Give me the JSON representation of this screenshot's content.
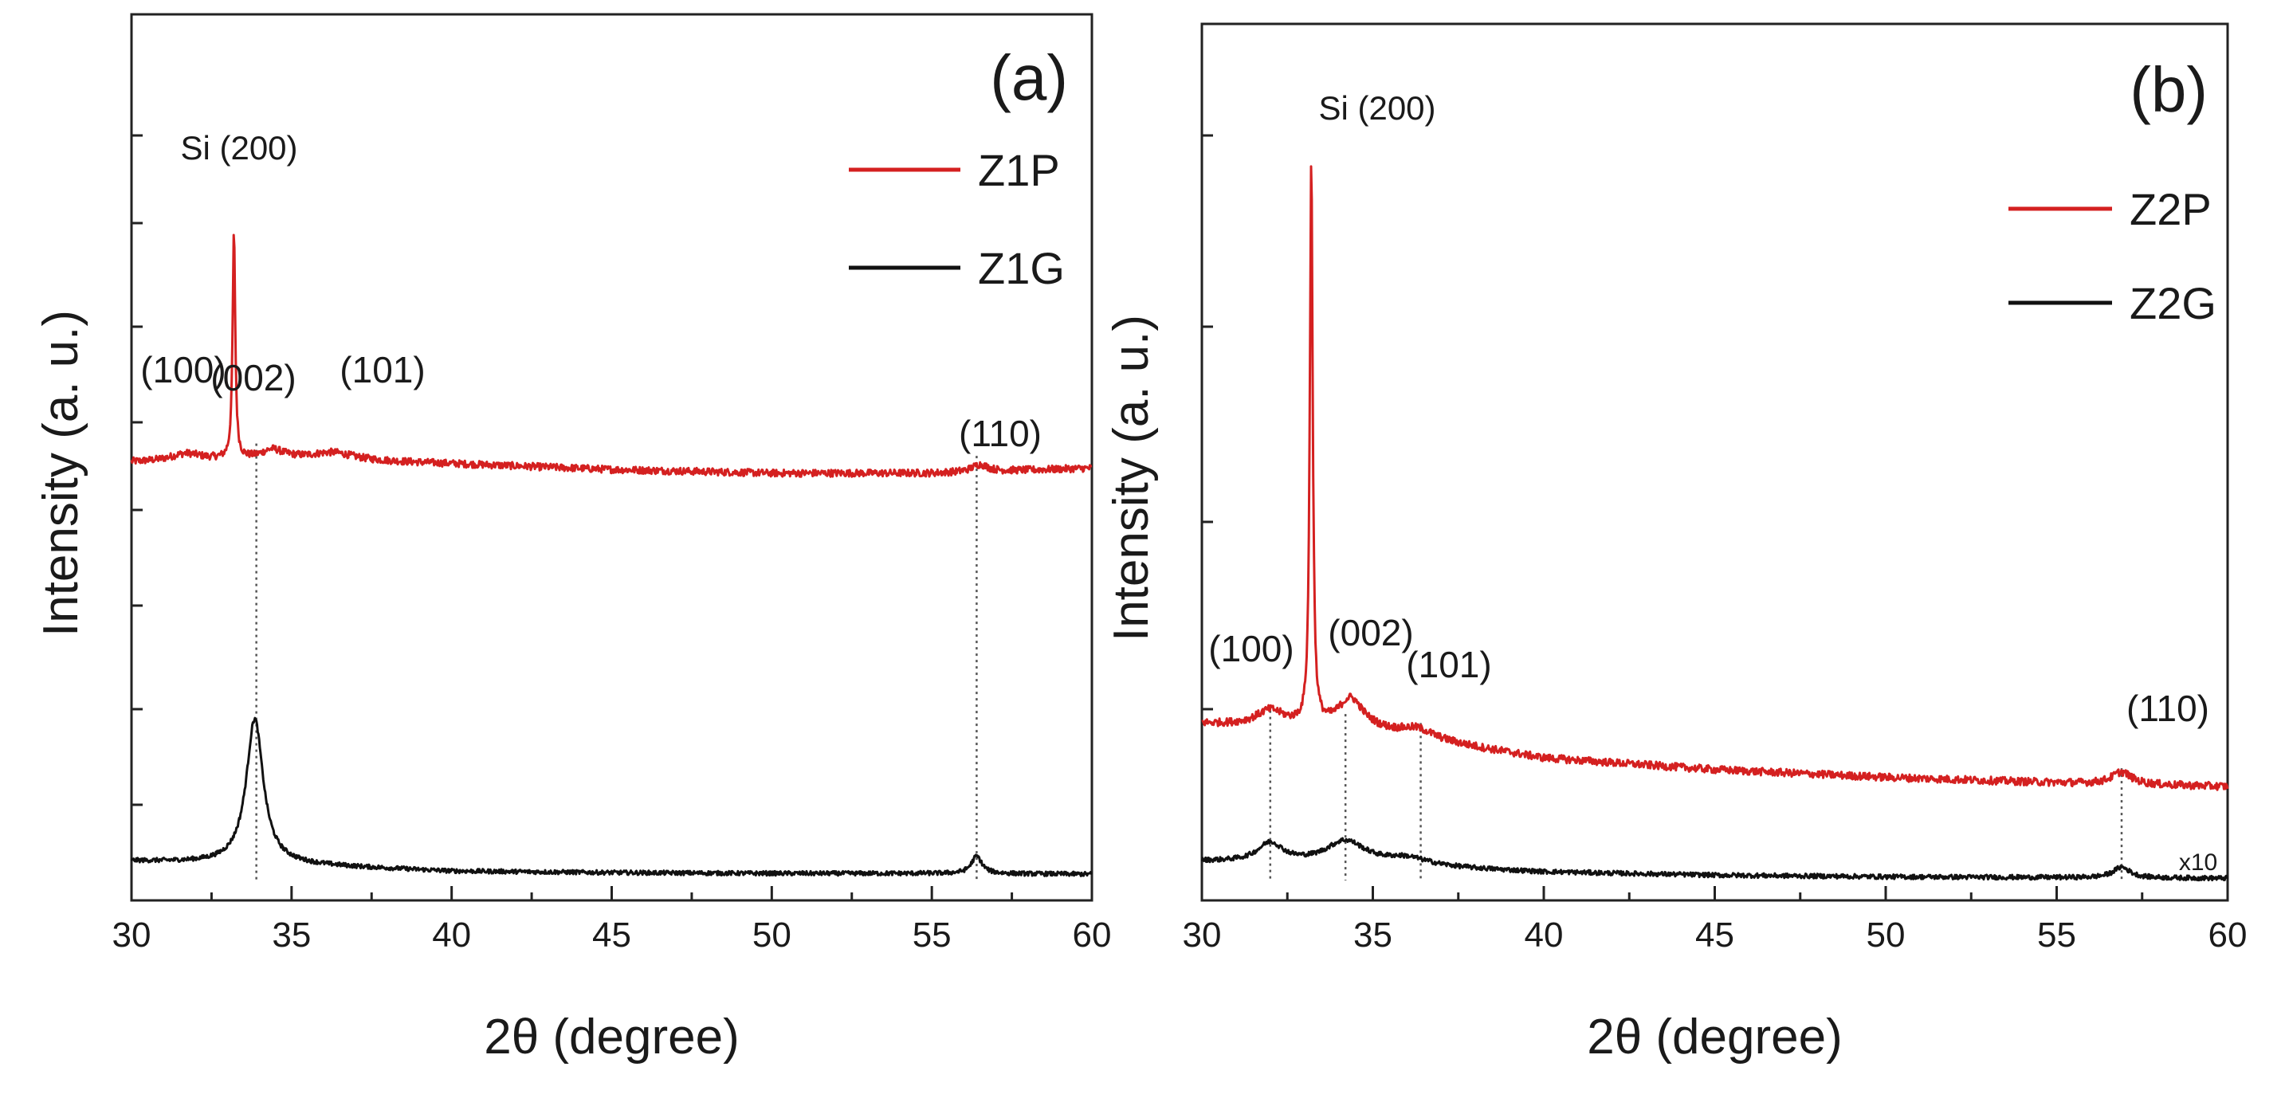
{
  "chart_data": [
    {
      "type": "line",
      "panel_label": "(a)",
      "xlabel": "2θ (degree)",
      "ylabel": "Intensity (a. u.)",
      "xlim": [
        30,
        60
      ],
      "x_ticks": [
        "30",
        "35",
        "40",
        "45",
        "50",
        "55",
        "60"
      ],
      "y_tick_labels": "none",
      "grid": false,
      "legend_position": "top-right",
      "series": [
        {
          "name": "Z1P",
          "color": "#d42020",
          "baseline": [
            [
              30,
              0.58
            ],
            [
              35,
              0.585
            ],
            [
              40,
              0.578
            ],
            [
              45,
              0.57
            ],
            [
              50,
              0.565
            ],
            [
              55,
              0.565
            ],
            [
              60,
              0.572
            ]
          ],
          "peaks": [
            {
              "x": 31.7,
              "height": 0.01,
              "width": 0.6
            },
            {
              "x": 33.2,
              "height": 0.31,
              "width": 0.05
            },
            {
              "x": 34.4,
              "height": 0.012,
              "width": 0.4
            },
            {
              "x": 36.3,
              "height": 0.01,
              "width": 0.8
            },
            {
              "x": 56.5,
              "height": 0.01,
              "width": 0.3
            }
          ],
          "noise": 0.005
        },
        {
          "name": "Z1G",
          "color": "#111111",
          "baseline": [
            [
              30,
              0.03
            ],
            [
              35,
              0.025
            ],
            [
              40,
              0.016
            ],
            [
              45,
              0.014
            ],
            [
              50,
              0.013
            ],
            [
              55,
              0.013
            ],
            [
              60,
              0.012
            ]
          ],
          "peaks": [
            {
              "x": 33.85,
              "height": 0.2,
              "width": 0.32
            },
            {
              "x": 56.4,
              "height": 0.024,
              "width": 0.2
            }
          ],
          "noise": 0.003
        }
      ],
      "annotations": [
        {
          "text": "Si (200)",
          "x": 33.2
        },
        {
          "text": "(100)",
          "x": 31.4
        },
        {
          "text": "(002)",
          "x": 34.8
        },
        {
          "text": "(101)",
          "x": 37.8
        },
        {
          "text": "(110)",
          "x": 56.7
        }
      ],
      "reference_lines_x": [
        33.9,
        56.4
      ]
    },
    {
      "type": "line",
      "panel_label": "(b)",
      "xlabel": "2θ (degree)",
      "ylabel": "Intensity (a. u.)",
      "xlim": [
        30,
        60
      ],
      "x_ticks": [
        "30",
        "35",
        "40",
        "45",
        "50",
        "55",
        "60"
      ],
      "y_tick_labels": "none",
      "grid": false,
      "legend_position": "top-right",
      "scale_note": "x10",
      "series": [
        {
          "name": "Z2P",
          "color": "#d42020",
          "baseline": [
            [
              30,
              0.21
            ],
            [
              33,
              0.205
            ],
            [
              35,
              0.2
            ],
            [
              40,
              0.165
            ],
            [
              45,
              0.15
            ],
            [
              50,
              0.14
            ],
            [
              55,
              0.133
            ],
            [
              60,
              0.128
            ]
          ],
          "peaks": [
            {
              "x": 32.0,
              "height": 0.02,
              "width": 0.5
            },
            {
              "x": 33.2,
              "height": 0.74,
              "width": 0.05
            },
            {
              "x": 34.35,
              "height": 0.04,
              "width": 0.45
            },
            {
              "x": 36.3,
              "height": 0.012,
              "width": 0.6
            },
            {
              "x": 56.9,
              "height": 0.016,
              "width": 0.35
            }
          ],
          "noise": 0.005
        },
        {
          "name": "Z2G",
          "color": "#111111",
          "baseline": [
            [
              30,
              0.03
            ],
            [
              35,
              0.025
            ],
            [
              40,
              0.016
            ],
            [
              45,
              0.012
            ],
            [
              50,
              0.01
            ],
            [
              55,
              0.009
            ],
            [
              60,
              0.008
            ]
          ],
          "peaks": [
            {
              "x": 32.0,
              "height": 0.025,
              "width": 0.45
            },
            {
              "x": 34.2,
              "height": 0.03,
              "width": 0.7
            },
            {
              "x": 36.0,
              "height": 0.01,
              "width": 0.8
            },
            {
              "x": 56.9,
              "height": 0.014,
              "width": 0.3
            }
          ],
          "noise": 0.003
        }
      ],
      "annotations": [
        {
          "text": "Si (200)",
          "x": 33.4
        },
        {
          "text": "(100)",
          "x": 31.7
        },
        {
          "text": "(002)",
          "x": 34.0
        },
        {
          "text": "(101)",
          "x": 36.9
        },
        {
          "text": "(110)",
          "x": 56.7
        }
      ],
      "reference_lines_x": [
        32.0,
        34.2,
        36.4,
        56.9
      ]
    }
  ]
}
